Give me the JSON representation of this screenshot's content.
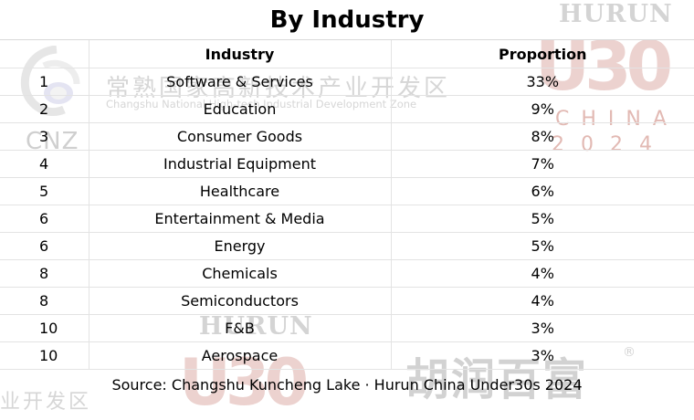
{
  "title": "By Industry",
  "table": {
    "headers": [
      "",
      "Industry",
      "Proportion"
    ],
    "rows": [
      {
        "rank": "1",
        "industry": "Software & Services",
        "proportion": "33%"
      },
      {
        "rank": "2",
        "industry": "Education",
        "proportion": "9%"
      },
      {
        "rank": "3",
        "industry": "Consumer Goods",
        "proportion": "8%"
      },
      {
        "rank": "4",
        "industry": "Industrial Equipment",
        "proportion": "7%"
      },
      {
        "rank": "5",
        "industry": "Healthcare",
        "proportion": "6%"
      },
      {
        "rank": "6",
        "industry": "Entertainment & Media",
        "proportion": "5%"
      },
      {
        "rank": "6",
        "industry": "Energy",
        "proportion": "5%"
      },
      {
        "rank": "8",
        "industry": "Chemicals",
        "proportion": "4%"
      },
      {
        "rank": "8",
        "industry": "Semiconductors",
        "proportion": "4%"
      },
      {
        "rank": "10",
        "industry": "F&B",
        "proportion": "3%"
      },
      {
        "rank": "10",
        "industry": "Aerospace",
        "proportion": "3%"
      }
    ]
  },
  "source": "Source: Changshu Kuncheng Lake · Hurun China Under30s 2024",
  "watermarks": {
    "cnz": "CNZ",
    "zone_cn": "常熟国家高新技术产业开发区",
    "zone_en": "Changshu National High-tech Industrial Development Zone",
    "hurun": "HURUN",
    "u30": "U30",
    "china": "CHINA",
    "year": "2024",
    "hurun_cn": "胡润百富",
    "registered": "®",
    "zone_cn_short": "业开发区"
  },
  "colors": {
    "grid": "#e3e3e3",
    "watermark_gray": "#d4d4d4",
    "watermark_red": "#e2b9b3"
  }
}
